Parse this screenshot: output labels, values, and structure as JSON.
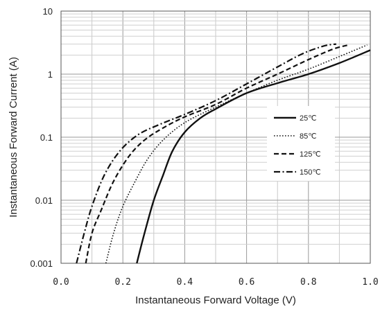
{
  "chart_data": {
    "type": "line",
    "xlabel": "Instantaneous Forward Voltage (V)",
    "ylabel": "Instantaneous Forward Current (A)",
    "xlim": [
      0,
      1.0
    ],
    "ylim": [
      0.001,
      10
    ],
    "y_scale": "log",
    "x_ticks": [
      "0.0",
      "0.2",
      "0.4",
      "0.6",
      "0.8",
      "1.0"
    ],
    "y_ticks": [
      "0.001",
      "0.01",
      "0.1",
      "1",
      "10"
    ],
    "grid": true,
    "legend_position": "right-middle",
    "series": [
      {
        "name": "25℃",
        "dash": "solid",
        "x": [
          0.245,
          0.27,
          0.3,
          0.33,
          0.36,
          0.4,
          0.45,
          0.5,
          0.6,
          0.7,
          0.8,
          0.9,
          1.0
        ],
        "y": [
          0.001,
          0.003,
          0.01,
          0.025,
          0.06,
          0.12,
          0.2,
          0.28,
          0.5,
          0.72,
          1.0,
          1.5,
          2.4
        ]
      },
      {
        "name": "85℃",
        "dash": "dotted",
        "x": [
          0.145,
          0.17,
          0.2,
          0.24,
          0.28,
          0.33,
          0.4,
          0.5,
          0.6,
          0.7,
          0.8,
          0.9,
          0.99
        ],
        "y": [
          0.001,
          0.003,
          0.008,
          0.02,
          0.045,
          0.09,
          0.17,
          0.3,
          0.5,
          0.8,
          1.2,
          1.9,
          2.9
        ]
      },
      {
        "name": "125℃",
        "dash": "dashed",
        "x": [
          0.08,
          0.1,
          0.13,
          0.17,
          0.22,
          0.27,
          0.33,
          0.4,
          0.5,
          0.6,
          0.7,
          0.8,
          0.88,
          0.93
        ],
        "y": [
          0.001,
          0.003,
          0.007,
          0.02,
          0.05,
          0.09,
          0.14,
          0.21,
          0.33,
          0.6,
          1.0,
          1.7,
          2.5,
          2.9
        ]
      },
      {
        "name": "150℃",
        "dash": "dashdot",
        "x": [
          0.05,
          0.075,
          0.1,
          0.14,
          0.19,
          0.25,
          0.32,
          0.4,
          0.5,
          0.6,
          0.7,
          0.78,
          0.85,
          0.89
        ],
        "y": [
          0.001,
          0.003,
          0.008,
          0.025,
          0.06,
          0.11,
          0.16,
          0.23,
          0.38,
          0.7,
          1.3,
          2.1,
          2.8,
          3.0
        ]
      }
    ]
  }
}
